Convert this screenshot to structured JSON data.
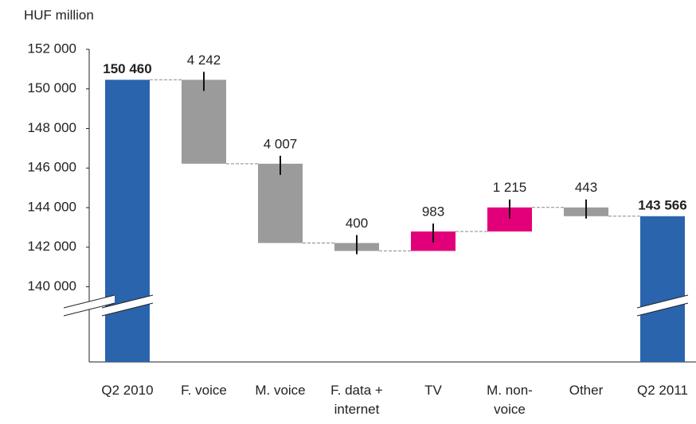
{
  "chart_data": {
    "type": "waterfall",
    "axis_label": "HUF million",
    "categories": [
      "Q2 2010",
      "F. voice",
      "M. voice",
      "F. data + internet",
      "TV",
      "M. non-voice",
      "Other",
      "Q2 2011"
    ],
    "values": [
      150460,
      -4242,
      -4007,
      -400,
      983,
      1215,
      -443,
      143566
    ],
    "value_labels": [
      "150 460",
      "4 242",
      "4 007",
      "400",
      "983",
      "1 215",
      "443",
      "143 566"
    ],
    "totals": [
      true,
      false,
      false,
      false,
      false,
      false,
      false,
      true
    ],
    "colors": {
      "total": "#2a64ad",
      "increase": "#e2007a",
      "decrease": "#9b9b9b"
    },
    "ylim": [
      136200,
      152000
    ],
    "yticks": [
      {
        "value": 140000,
        "label": "140 000"
      },
      {
        "value": 142000,
        "label": "142 000"
      },
      {
        "value": 144000,
        "label": "144 000"
      },
      {
        "value": 146000,
        "label": "146 000"
      },
      {
        "value": 148000,
        "label": "148 000"
      },
      {
        "value": 150000,
        "label": "150 000"
      },
      {
        "value": 152000,
        "label": "152 000"
      }
    ],
    "axis_break": true
  }
}
